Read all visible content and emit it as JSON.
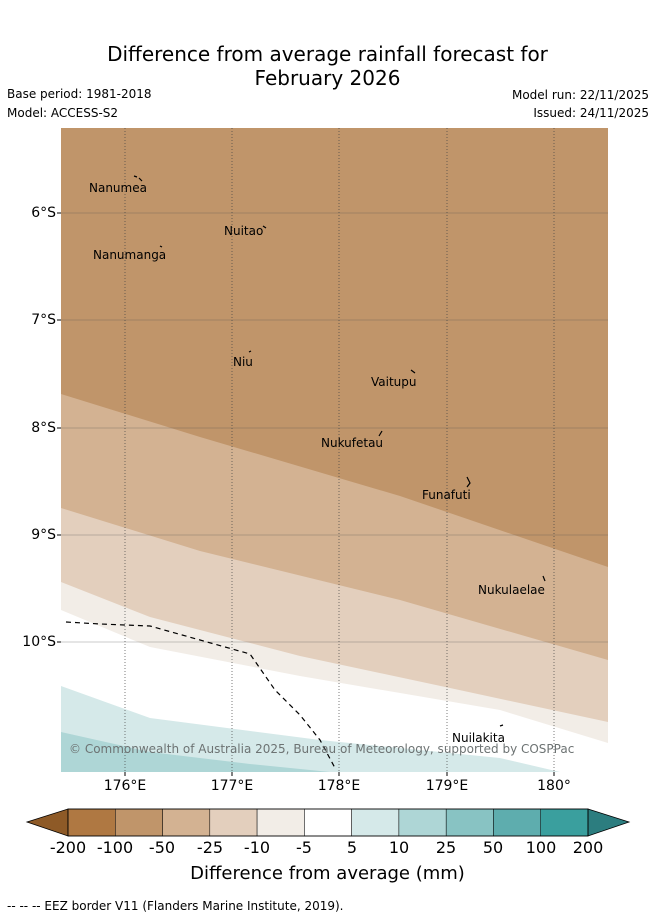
{
  "title_line1": "Difference from average rainfall forecast for",
  "title_line2": "February 2026",
  "base_period": "Base period: 1981-2018",
  "model": "Model: ACCESS-S2",
  "model_run": "Model run: 22/11/2025",
  "issued": "Issued: 24/11/2025",
  "latitude_labels": [
    "6°S",
    "7°S",
    "8°S",
    "9°S",
    "10°S"
  ],
  "longitude_labels": [
    "176°E",
    "177°E",
    "178°E",
    "179°E",
    "180°"
  ],
  "places": [
    "Nanumea",
    "Nuitao",
    "Nanumanga",
    "Niu",
    "Vaitupu",
    "Nukufetau",
    "Funafuti",
    "Nukulaelae",
    "Nuilakita"
  ],
  "copyright": "© Commonwealth of Australia 2025, Bureau of Meteorology, supported by COSPPac",
  "colorbar": {
    "ticks": [
      "-200",
      "-100",
      "-50",
      "-25",
      "-10",
      "-5",
      "5",
      "10",
      "25",
      "50",
      "100",
      "200"
    ],
    "colors": [
      "#8e5a27",
      "#af7842",
      "#c0956a",
      "#d3b292",
      "#e3cfbd",
      "#f2ede7",
      "#ffffff",
      "#d5e9e9",
      "#aed6d6",
      "#88c3c3",
      "#5eadae",
      "#3a9f9e",
      "#2c7d7f"
    ],
    "label": "Difference from average (mm)"
  },
  "footer": "-- -- -- EEZ border V11 (Flanders Marine Institute, 2019)."
}
